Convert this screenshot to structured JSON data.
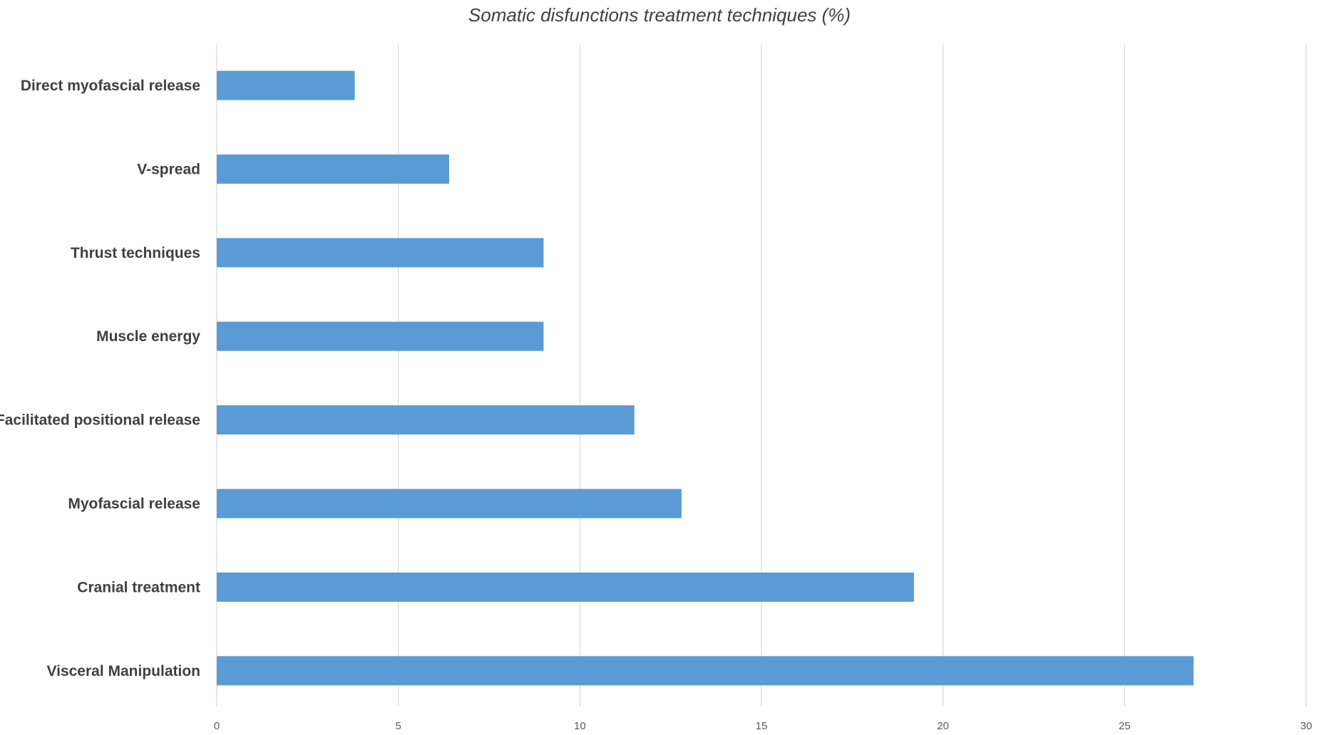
{
  "chart_data": {
    "type": "bar",
    "orientation": "horizontal",
    "title": "Somatic disfunctions treatment techniques (%)",
    "xlabel": "",
    "ylabel": "",
    "categories": [
      "Direct myofascial release",
      "V-spread",
      "Thrust techniques",
      "Muscle energy",
      "Facilitated positional release",
      "Myofascial release",
      "Cranial treatment",
      "Visceral Manipulation"
    ],
    "values": [
      3.8,
      6.4,
      9.0,
      9.0,
      11.5,
      12.8,
      19.2,
      26.9
    ],
    "xlim": [
      0,
      30
    ],
    "xticks": [
      "0",
      "5",
      "10",
      "15",
      "20",
      "25",
      "30"
    ],
    "grid": true,
    "legend": "none",
    "colors": {
      "bar": "#5b9bd5",
      "grid": "#d9d9d9",
      "text": "#404040"
    }
  }
}
